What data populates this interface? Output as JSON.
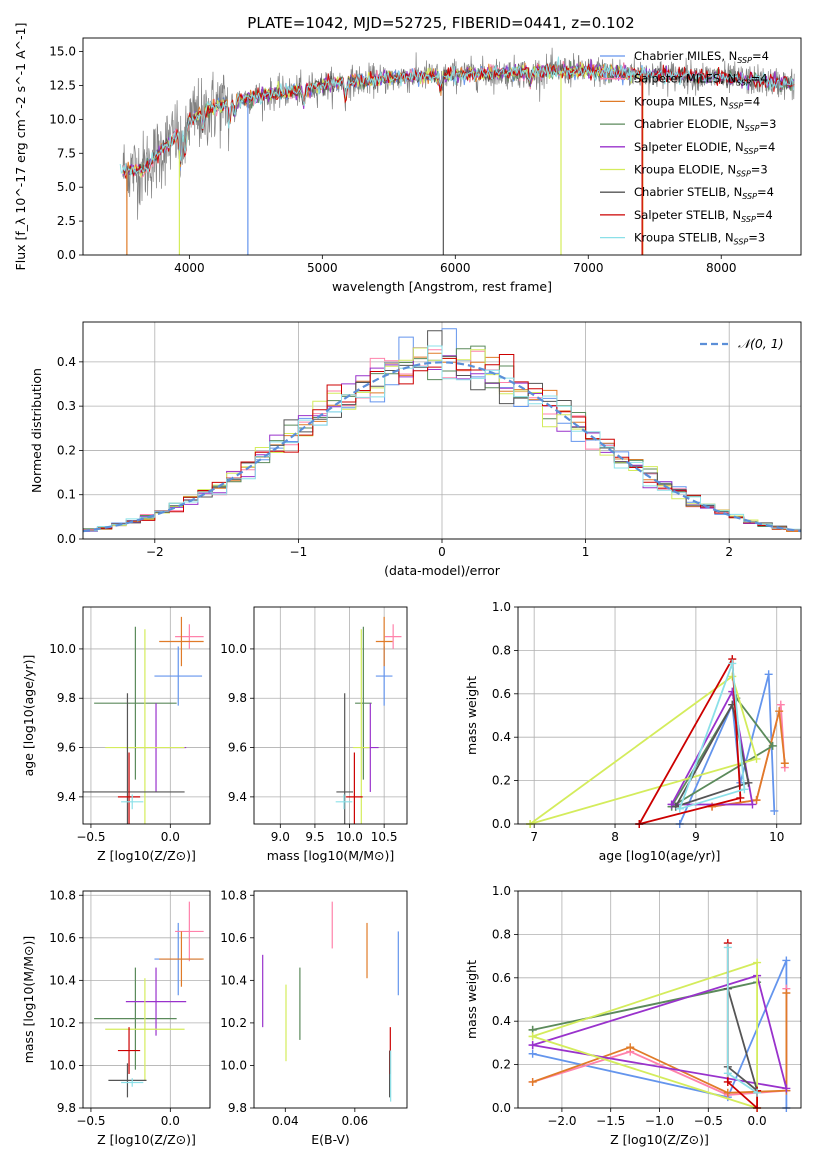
{
  "figure": {
    "title": "PLATE=1042, MJD=52725, FIBERID=0441, z=0.102"
  },
  "colors": {
    "Chabrier MILES": "#6495ed",
    "Salpeter MILES": "#ff82ab",
    "Kroupa MILES": "#e07b28",
    "Chabrier ELODIE": "#5b8a5b",
    "Salpeter ELODIE": "#9932cc",
    "Kroupa ELODIE": "#d4ec5c",
    "Chabrier STELIB": "#555555",
    "Salpeter STELIB": "#cc0000",
    "Kroupa STELIB": "#8be0e8",
    "data": "#808080",
    "normal": "#5b8fd8",
    "grid": "#b0b0b0"
  },
  "chart_data": [
    {
      "id": "spectrum",
      "type": "line",
      "title": "PLATE=1042, MJD=52725, FIBERID=0441, z=0.102",
      "xlabel": "wavelength [Angstrom, rest frame]",
      "ylabel": "Flux [f_λ 10^-17 erg cm^-2 s^-1 A^-1]",
      "xlim": [
        3200,
        8600
      ],
      "ylim": [
        0,
        16
      ],
      "xticks": [
        4000,
        5000,
        6000,
        7000,
        8000
      ],
      "yticks": [
        0.0,
        2.5,
        5.0,
        7.5,
        10.0,
        12.5,
        15.0
      ],
      "grid": false,
      "legend_position": "right",
      "legend": [
        {
          "name": "Chabrier MILES",
          "n_ssp": 4
        },
        {
          "name": "Salpeter MILES",
          "n_ssp": 4
        },
        {
          "name": "Kroupa MILES",
          "n_ssp": 4
        },
        {
          "name": "Chabrier ELODIE",
          "n_ssp": 3
        },
        {
          "name": "Salpeter ELODIE",
          "n_ssp": 4
        },
        {
          "name": "Kroupa ELODIE",
          "n_ssp": 3
        },
        {
          "name": "Chabrier STELIB",
          "n_ssp": 4
        },
        {
          "name": "Salpeter STELIB",
          "n_ssp": 4
        },
        {
          "name": "Kroupa STELIB",
          "n_ssp": 3
        }
      ],
      "continuum": {
        "x": [
          3500,
          3650,
          3800,
          3950,
          4100,
          4300,
          4500,
          4800,
          5000,
          5200,
          5500,
          5800,
          6000,
          6300,
          6600,
          6900,
          7200,
          7500,
          7800,
          8200,
          8550
        ],
        "y": [
          6.2,
          6.3,
          7.8,
          9.4,
          10.6,
          11.3,
          11.7,
          12.1,
          12.5,
          12.8,
          13.0,
          13.2,
          13.3,
          13.4,
          13.5,
          13.6,
          13.5,
          13.3,
          13.2,
          12.9,
          12.6
        ]
      }
    },
    {
      "id": "residuals",
      "type": "histogram",
      "xlabel": "(data-model)/error",
      "ylabel": "Normed distribution",
      "xlim": [
        -2.5,
        2.5
      ],
      "ylim": [
        0,
        0.49
      ],
      "xticks": [
        -2,
        -1,
        0,
        1,
        2
      ],
      "yticks": [
        0.0,
        0.1,
        0.2,
        0.3,
        0.4
      ],
      "grid": true,
      "legend_position": "top-right",
      "legend": [
        {
          "name": "𝒩(0, 1)"
        }
      ],
      "bin_width": 0.1,
      "normal": {
        "mean": 0,
        "sigma": 1
      }
    },
    {
      "id": "age_vs_Z",
      "type": "errorbar",
      "xlabel": "Z [log10(Z/Z⊙)]",
      "ylabel": "age [log10(age/yr)]",
      "xlim": [
        -0.55,
        0.25
      ],
      "ylim": [
        9.29,
        10.17
      ],
      "xticks": [
        -0.5,
        0.0
      ],
      "yticks": [
        9.4,
        9.6,
        9.8,
        10.0
      ],
      "grid": true,
      "points": [
        {
          "model": "Chabrier MILES",
          "x": 0.05,
          "xerr": 0.15,
          "y": 9.89,
          "yerr": 0.12
        },
        {
          "model": "Salpeter MILES",
          "x": 0.12,
          "xerr": 0.09,
          "y": 10.05,
          "yerr": 0.05
        },
        {
          "model": "Kroupa MILES",
          "x": 0.07,
          "xerr": 0.14,
          "y": 10.03,
          "yerr": 0.1
        },
        {
          "model": "Chabrier ELODIE",
          "x": -0.22,
          "xerr": 0.26,
          "y": 9.78,
          "yerr": 0.31
        },
        {
          "model": "Salpeter ELODIE",
          "x": -0.09,
          "xerr": 0.19,
          "y": 9.6,
          "yerr": 0.18
        },
        {
          "model": "Kroupa ELODIE",
          "x": -0.16,
          "xerr": 0.25,
          "y": 9.6,
          "yerr": 0.48
        },
        {
          "model": "Chabrier STELIB",
          "x": -0.27,
          "xerr": 0.36,
          "y": 9.42,
          "yerr": 0.4
        },
        {
          "model": "Salpeter STELIB",
          "x": -0.26,
          "xerr": 0.07,
          "y": 9.4,
          "yerr": 0.18
        },
        {
          "model": "Kroupa STELIB",
          "x": -0.24,
          "xerr": 0.07,
          "y": 9.38,
          "yerr": 0.03
        }
      ]
    },
    {
      "id": "age_vs_mass",
      "type": "errorbar",
      "xlabel": "mass [log10(M/M⊙)]",
      "ylabel": "",
      "xlim": [
        8.62,
        10.83
      ],
      "ylim": [
        9.29,
        10.17
      ],
      "xticks": [
        9.0,
        9.5,
        10.0,
        10.5
      ],
      "yticks": [
        9.4,
        9.6,
        9.8,
        10.0
      ],
      "grid": true,
      "points": [
        {
          "model": "Chabrier MILES",
          "x": 10.5,
          "xerr": 0.12,
          "y": 9.89,
          "yerr": 0.12
        },
        {
          "model": "Salpeter MILES",
          "x": 10.63,
          "xerr": 0.12,
          "y": 10.05,
          "yerr": 0.05
        },
        {
          "model": "Kroupa MILES",
          "x": 10.5,
          "xerr": 0.12,
          "y": 10.03,
          "yerr": 0.1
        },
        {
          "model": "Chabrier ELODIE",
          "x": 10.2,
          "xerr": 0.12,
          "y": 9.78,
          "yerr": 0.31
        },
        {
          "model": "Salpeter ELODIE",
          "x": 10.3,
          "xerr": 0.12,
          "y": 9.6,
          "yerr": 0.18
        },
        {
          "model": "Kroupa ELODIE",
          "x": 10.17,
          "xerr": 0.12,
          "y": 9.6,
          "yerr": 0.48
        },
        {
          "model": "Chabrier STELIB",
          "x": 9.93,
          "xerr": 0.12,
          "y": 9.42,
          "yerr": 0.4
        },
        {
          "model": "Salpeter STELIB",
          "x": 10.07,
          "xerr": 0.12,
          "y": 9.4,
          "yerr": 0.18
        },
        {
          "model": "Kroupa STELIB",
          "x": 9.92,
          "xerr": 0.12,
          "y": 9.38,
          "yerr": 0.03
        }
      ]
    },
    {
      "id": "mw_vs_age",
      "type": "line",
      "xlabel": "age [log10(age/yr)]",
      "ylabel": "mass weight",
      "xlim": [
        6.8,
        10.3
      ],
      "ylim": [
        0,
        1.0
      ],
      "xticks": [
        7,
        8,
        9,
        10
      ],
      "yticks": [
        0.0,
        0.2,
        0.4,
        0.6,
        0.8,
        1.0
      ],
      "grid": true,
      "series": [
        {
          "model": "Chabrier MILES",
          "x": [
            8.8,
            9.45,
            9.55,
            9.9,
            9.97
          ],
          "y": [
            0.0,
            0.55,
            0.19,
            0.69,
            0.06
          ]
        },
        {
          "model": "Salpeter MILES",
          "x": [
            9.2,
            9.75,
            10.05,
            10.1
          ],
          "y": [
            0.08,
            0.11,
            0.55,
            0.26
          ]
        },
        {
          "model": "Kroupa MILES",
          "x": [
            9.2,
            9.75,
            10.03,
            10.1
          ],
          "y": [
            0.08,
            0.11,
            0.52,
            0.28
          ]
        },
        {
          "model": "Chabrier ELODIE",
          "x": [
            8.7,
            9.5,
            9.95,
            8.7
          ],
          "y": [
            0.08,
            0.58,
            0.36,
            0.08
          ]
        },
        {
          "model": "Salpeter ELODIE",
          "x": [
            8.7,
            9.45,
            9.7,
            8.7
          ],
          "y": [
            0.09,
            0.61,
            0.09,
            0.09
          ]
        },
        {
          "model": "Kroupa ELODIE",
          "x": [
            6.95,
            9.45,
            9.75,
            6.95
          ],
          "y": [
            0.0,
            0.68,
            0.3,
            0.0
          ]
        },
        {
          "model": "Chabrier STELIB",
          "x": [
            8.75,
            9.45,
            9.65,
            8.75
          ],
          "y": [
            0.08,
            0.55,
            0.19,
            0.08
          ]
        },
        {
          "model": "Salpeter STELIB",
          "x": [
            8.3,
            9.45,
            9.55,
            8.3
          ],
          "y": [
            0.0,
            0.76,
            0.12,
            0.0
          ]
        },
        {
          "model": "Kroupa STELIB",
          "x": [
            8.8,
            9.45,
            9.6,
            8.8
          ],
          "y": [
            0.07,
            0.74,
            0.16,
            0.07
          ]
        }
      ]
    },
    {
      "id": "mass_vs_Z",
      "type": "errorbar",
      "xlabel": "Z [log10(Z/Z⊙)]",
      "ylabel": "mass [log10(M/M⊙)]",
      "xlim": [
        -0.55,
        0.25
      ],
      "ylim": [
        9.8,
        10.82
      ],
      "xticks": [
        -0.5,
        0.0
      ],
      "yticks": [
        9.8,
        10.0,
        10.2,
        10.4,
        10.6,
        10.8
      ],
      "grid": true,
      "points": [
        {
          "model": "Chabrier MILES",
          "x": 0.05,
          "xerr": 0.15,
          "y": 10.5,
          "yerr": 0.17
        },
        {
          "model": "Salpeter MILES",
          "x": 0.12,
          "xerr": 0.09,
          "y": 10.63,
          "yerr": 0.14
        },
        {
          "model": "Kroupa MILES",
          "x": 0.07,
          "xerr": 0.14,
          "y": 10.5,
          "yerr": 0.13
        },
        {
          "model": "Chabrier ELODIE",
          "x": -0.22,
          "xerr": 0.26,
          "y": 10.22,
          "yerr": 0.24
        },
        {
          "model": "Salpeter ELODIE",
          "x": -0.09,
          "xerr": 0.19,
          "y": 10.3,
          "yerr": 0.16
        },
        {
          "model": "Kroupa ELODIE",
          "x": -0.16,
          "xerr": 0.25,
          "y": 10.17,
          "yerr": 0.24
        },
        {
          "model": "Chabrier STELIB",
          "x": -0.27,
          "xerr": 0.12,
          "y": 9.93,
          "yerr": 0.08
        },
        {
          "model": "Salpeter STELIB",
          "x": -0.26,
          "xerr": 0.07,
          "y": 10.07,
          "yerr": 0.11
        },
        {
          "model": "Kroupa STELIB",
          "x": -0.24,
          "xerr": 0.07,
          "y": 9.92,
          "yerr": 0.02
        }
      ]
    },
    {
      "id": "mass_vs_ebv",
      "type": "errorbar",
      "xlabel": "E(B-V)",
      "ylabel": "",
      "xlim": [
        0.031,
        0.075
      ],
      "ylim": [
        9.8,
        10.82
      ],
      "xticks": [
        0.04,
        0.06
      ],
      "yticks": [
        9.8,
        10.0,
        10.2,
        10.4,
        10.6,
        10.8
      ],
      "grid": false,
      "points": [
        {
          "model": "Chabrier MILES",
          "x": 0.0725,
          "y": 10.48,
          "yerr": 0.15
        },
        {
          "model": "Salpeter MILES",
          "x": 0.0535,
          "y": 10.66,
          "yerr": 0.11
        },
        {
          "model": "Kroupa MILES",
          "x": 0.0635,
          "y": 10.54,
          "yerr": 0.13
        },
        {
          "model": "Chabrier ELODIE",
          "x": 0.0442,
          "y": 10.29,
          "yerr": 0.17
        },
        {
          "model": "Salpeter ELODIE",
          "x": 0.0335,
          "y": 10.35,
          "yerr": 0.17
        },
        {
          "model": "Kroupa ELODIE",
          "x": 0.0402,
          "y": 10.2,
          "yerr": 0.18
        },
        {
          "model": "Chabrier STELIB",
          "x": 0.07,
          "y": 9.96,
          "yerr": 0.11
        },
        {
          "model": "Salpeter STELIB",
          "x": 0.0702,
          "y": 10.07,
          "yerr": 0.11
        },
        {
          "model": "Kroupa STELIB",
          "x": 0.0703,
          "y": 9.95,
          "yerr": 0.12
        }
      ]
    },
    {
      "id": "mw_vs_Z",
      "type": "line",
      "xlabel": "Z [log10(Z/Z⊙)]",
      "ylabel": "mass weight",
      "xlim": [
        -2.45,
        0.45
      ],
      "ylim": [
        0,
        1.0
      ],
      "xticks": [
        -2.0,
        -1.5,
        -1.0,
        -0.5,
        0.0
      ],
      "yticks": [
        0.0,
        0.2,
        0.4,
        0.6,
        0.8,
        1.0
      ],
      "grid": true,
      "series": [
        {
          "model": "Chabrier MILES",
          "x": [
            -2.3,
            -0.3,
            0.3,
            0.3
          ],
          "y": [
            0.25,
            0.05,
            0.68,
            0.0
          ]
        },
        {
          "model": "Salpeter MILES",
          "x": [
            -2.3,
            -1.3,
            -0.3,
            0.3,
            0.3
          ],
          "y": [
            0.12,
            0.26,
            0.06,
            0.08,
            0.55
          ]
        },
        {
          "model": "Kroupa MILES",
          "x": [
            -2.3,
            -1.3,
            -0.3,
            0.3,
            0.3
          ],
          "y": [
            0.12,
            0.28,
            0.07,
            0.08,
            0.53
          ]
        },
        {
          "model": "Chabrier ELODIE",
          "x": [
            -2.3,
            0.0,
            -0.3,
            -2.3
          ],
          "y": [
            0.36,
            0.58,
            0.55,
            0.36
          ]
        },
        {
          "model": "Salpeter ELODIE",
          "x": [
            -2.3,
            0.0,
            0.3,
            -2.3
          ],
          "y": [
            0.29,
            0.61,
            0.09,
            0.29
          ]
        },
        {
          "model": "Kroupa ELODIE",
          "x": [
            -2.3,
            0.0,
            0.0,
            -2.3
          ],
          "y": [
            0.33,
            0.67,
            0.0,
            0.33
          ]
        },
        {
          "model": "Chabrier STELIB",
          "x": [
            -0.3,
            0.0,
            -0.3
          ],
          "y": [
            0.55,
            0.08,
            0.19
          ]
        },
        {
          "model": "Salpeter STELIB",
          "x": [
            -0.3,
            -0.3,
            0.0,
            0.0
          ],
          "y": [
            0.76,
            0.12,
            0.0,
            0.08
          ]
        },
        {
          "model": "Kroupa STELIB",
          "x": [
            -0.3,
            -0.3,
            0.0
          ],
          "y": [
            0.74,
            0.16,
            0.07
          ]
        }
      ]
    }
  ]
}
